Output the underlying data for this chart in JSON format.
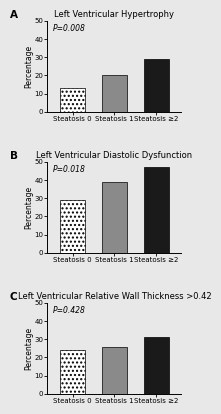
{
  "panels": [
    {
      "label": "A",
      "title": "Left Ventricular Hypertrophy",
      "pvalue": "P=0.008",
      "categories": [
        "Steatosis 0",
        "Steatosis 1",
        "Steatosis ≥2"
      ],
      "values": [
        13,
        20,
        29
      ],
      "ylim": [
        0,
        50
      ],
      "yticks": [
        0,
        10,
        20,
        30,
        40,
        50
      ]
    },
    {
      "label": "B",
      "title": "Left Ventricular Diastolic Dysfunction",
      "pvalue": "P=0.018",
      "categories": [
        "Steatosis 0",
        "Steatosis 1",
        "Steatosis ≥2"
      ],
      "values": [
        29,
        39,
        47
      ],
      "ylim": [
        0,
        50
      ],
      "yticks": [
        0,
        10,
        20,
        30,
        40,
        50
      ]
    },
    {
      "label": "C",
      "title": "Left Ventricular Relative Wall Thickness >0.42",
      "pvalue": "P=0.428",
      "categories": [
        "Steatosis 0",
        "Steatosis 1",
        "Steatosis ≥2"
      ],
      "values": [
        24,
        26,
        31
      ],
      "ylim": [
        0,
        50
      ],
      "yticks": [
        0,
        10,
        20,
        30,
        40,
        50
      ]
    }
  ],
  "ylabel": "Percentage",
  "background_color": "#e8e8e8",
  "bar_facecolors": [
    "white",
    "#8a8a8a",
    "#1a1a1a"
  ],
  "bar_edgecolor": "black",
  "hatch_first": "....",
  "title_fontsize": 6.0,
  "label_fontsize": 5.5,
  "tick_fontsize": 5.0,
  "pvalue_fontsize": 5.5,
  "panel_label_fontsize": 7.5,
  "bar_linewidth": 0.5,
  "bar_width": 0.6
}
